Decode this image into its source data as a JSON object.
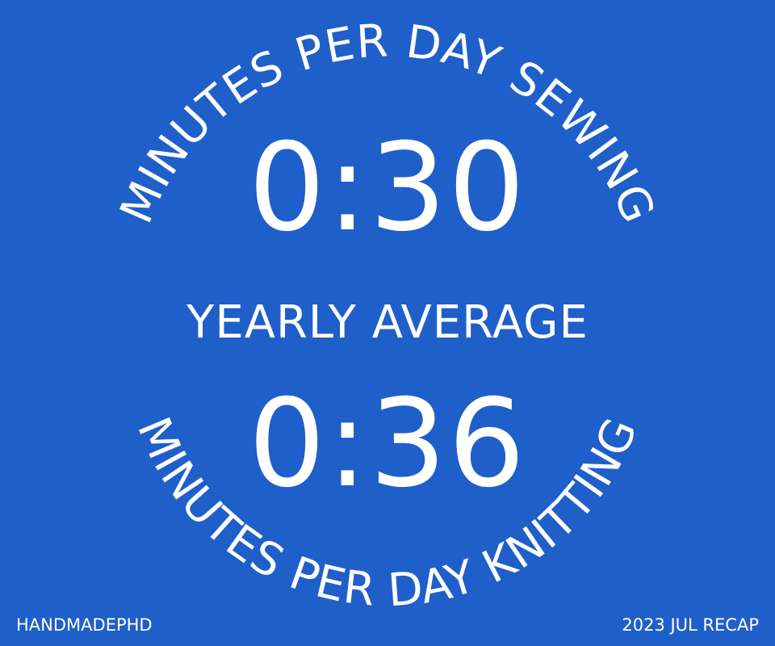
{
  "top_arc_label": "MINUTES PER DAY SEWING",
  "sewing_value": "0:30",
  "yearly_label": "YEARLY AVERAGE",
  "knitting_value": "0:36",
  "bottom_arc_label": "MINUTES PER DAY KNITTING",
  "footer": {
    "brand": "HANDMADEPHD",
    "recap": "2023 JUL RECAP"
  },
  "colors": {
    "background": "#1f5fc9",
    "text": "#ffffff"
  }
}
